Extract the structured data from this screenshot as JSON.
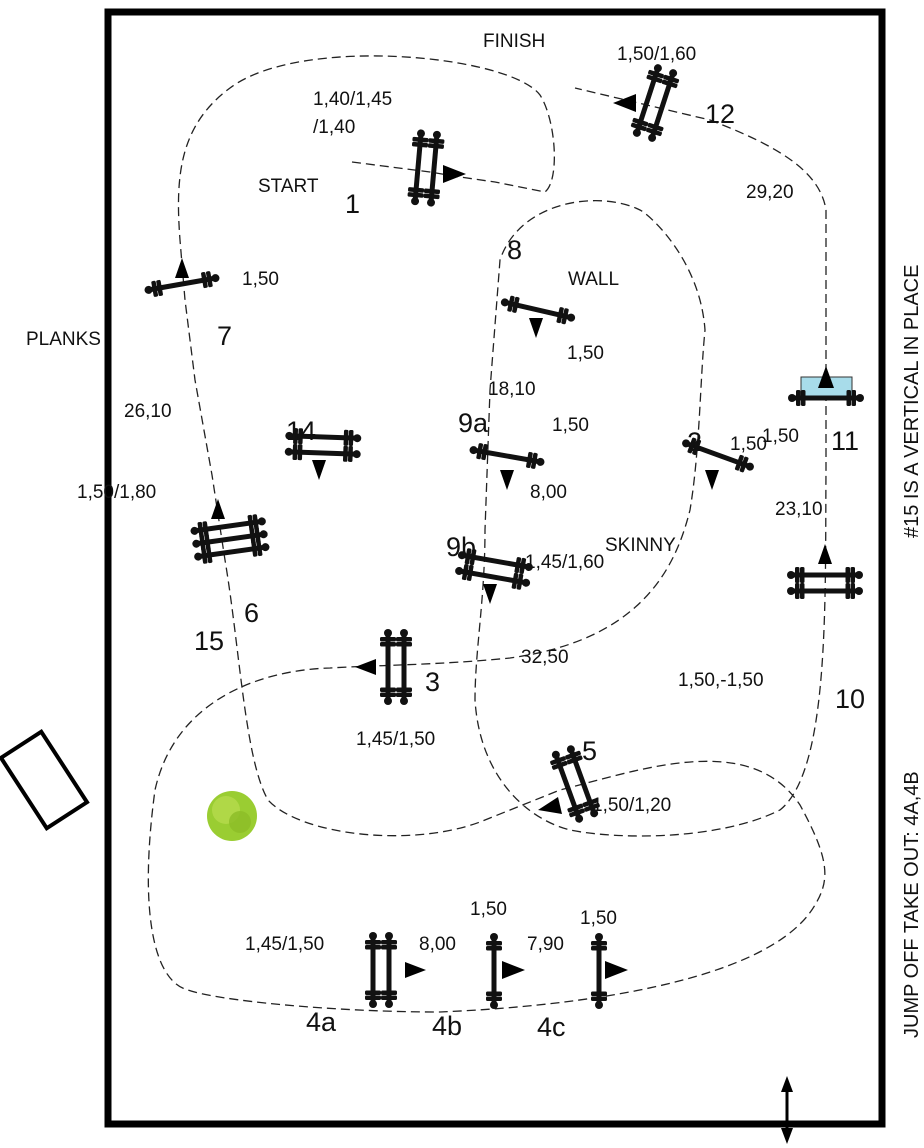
{
  "texts": {
    "finish": "FINISH",
    "start": "START",
    "wall": "WALL",
    "planks": "PLANKS",
    "skinny": "SKINNY",
    "side_note_1": "#15 IS A VERTICAL  IN PLACE",
    "side_note_2": "JUMP OFF TAKE OUT: 4A,4B"
  },
  "jumps": [
    {
      "id": "1",
      "label": "1",
      "height": "1,40/1,45",
      "height2": "/1,40"
    },
    {
      "id": "2",
      "label": "2",
      "height": "1,50"
    },
    {
      "id": "3",
      "label": "3",
      "height": "1,45/1,50"
    },
    {
      "id": "4a",
      "label": "4a",
      "height": "1,45/1,50"
    },
    {
      "id": "4b",
      "label": "4b",
      "height": "1,50"
    },
    {
      "id": "4c",
      "label": "4c",
      "height": "1,50"
    },
    {
      "id": "5",
      "label": "5",
      "height": "1,50/1,20"
    },
    {
      "id": "6",
      "label": "6",
      "height": "1,50/1,80"
    },
    {
      "id": "7",
      "label": "7",
      "height": "1,50"
    },
    {
      "id": "8",
      "label": "8",
      "height": "1,50"
    },
    {
      "id": "9a",
      "label": "9a",
      "height": "1,50"
    },
    {
      "id": "9b",
      "label": "9b",
      "height": "1,45/1,60"
    },
    {
      "id": "10",
      "label": "10",
      "height": "1,50,-1,50"
    },
    {
      "id": "11",
      "label": "11",
      "height": "1,50"
    },
    {
      "id": "12",
      "label": "12",
      "height": "1,50/1,60"
    },
    {
      "id": "14",
      "label": "14"
    },
    {
      "id": "15",
      "label": "15"
    }
  ],
  "distances": {
    "d_4a_4b": "8,00",
    "d_4b_4c": "7,90",
    "d_9a_9b": "8,00",
    "d_8_9a": "18,10",
    "d_6_7": "26,10",
    "d_2_3": "32,50",
    "d_10_11": "23,10",
    "d_11_12": "29,20"
  },
  "colors": {
    "wall_fill": "#a8dcea",
    "tree_fill": "#9acd32"
  }
}
